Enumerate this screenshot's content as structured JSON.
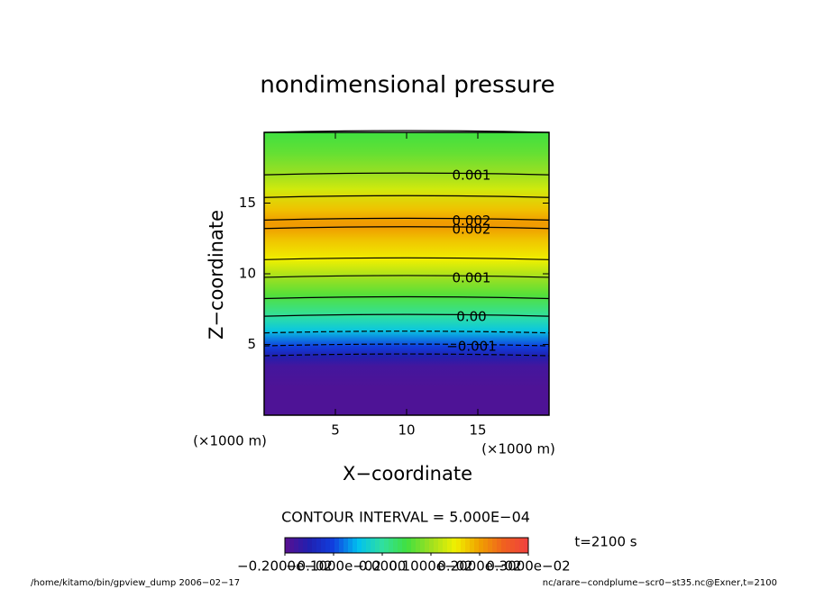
{
  "chart_data": {
    "type": "contour",
    "title": "nondimensional pressure",
    "xlabel": "X−coordinate",
    "ylabel": "Z−coordinate",
    "xunit": "(×1000 m)",
    "yunit": "(×1000 m)",
    "xlim": [
      0,
      20
    ],
    "ylim": [
      0,
      20
    ],
    "xticks": [
      5,
      10,
      15
    ],
    "yticks": [
      5,
      10,
      15
    ],
    "profile": {
      "z": [
        0,
        2,
        3.5,
        4.2,
        4.9,
        6,
        7,
        8.5,
        9.75,
        11,
        12.5,
        13.2,
        13.5,
        13.8,
        14.5,
        16,
        17,
        18.5,
        20
      ],
      "values": [
        -0.0019,
        -0.0019,
        -0.0018,
        -0.0015,
        -0.001,
        -0.0004,
        0,
        0.0006,
        0.001,
        0.0015,
        0.0018,
        0.002,
        0.00205,
        0.002,
        0.0018,
        0.0013,
        0.001,
        0.0007,
        0.0005
      ]
    },
    "contour_levels": [
      -0.0015,
      -0.001,
      -0.0005,
      0,
      0.0005,
      0.001,
      0.0015,
      0.002
    ],
    "contour_labels": [
      {
        "value": 0.001,
        "label": "0.001"
      },
      {
        "value": 0.002,
        "label": "0.002"
      },
      {
        "value": 0.002,
        "label": "0.002"
      },
      {
        "value": 0.001,
        "label": "0.001"
      },
      {
        "value": 0,
        "label": "0.00"
      },
      {
        "value": -0.001,
        "label": "−0.001"
      }
    ],
    "contour_interval": "CONTOUR INTERVAL = 5.000E−04",
    "time_label": "t=2100 s",
    "colorbar": {
      "clim": [
        -0.002,
        0.003
      ],
      "ticks": [
        {
          "value": -0.002,
          "label": "−0.2000e−02"
        },
        {
          "value": -0.001,
          "label": "−0.1000e−02"
        },
        {
          "value": 0,
          "label": "0.0000"
        },
        {
          "value": 0.001,
          "label": "0.1000e−02"
        },
        {
          "value": 0.002,
          "label": "0.2000e−02"
        },
        {
          "value": 0.003,
          "label": "0.3000e−02"
        }
      ]
    },
    "footer_left": "/home/kitamo/bin/gpview_dump  2006−02−17",
    "footer_right": "nc/arare−condplume−scr0−st35.nc@Exner,t=2100"
  }
}
